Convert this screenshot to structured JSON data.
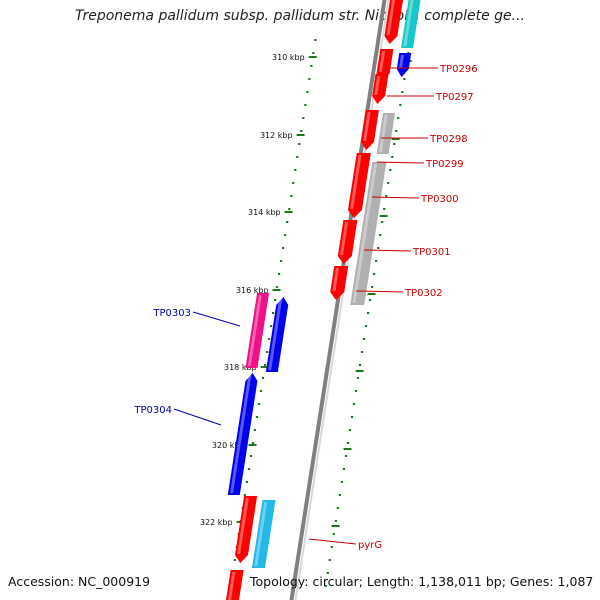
{
  "title": "Treponema pallidum subsp. pallidum str. Nichols, complete ge...",
  "footer": {
    "accession": "Accession: NC_000919",
    "topology": "Topology: circular; Length: 1,138,011 bp; Genes: 1,087"
  },
  "colors": {
    "backbone": "#808080",
    "backbone_light": "#d8d8d8",
    "tick": "#1a7a1a",
    "forward_cds": "#ff0000",
    "reverse_cds": "#0000ee",
    "forward_label": "#cc0000",
    "reverse_label": "#0000aa",
    "cyan_feature": "#22b8e8",
    "teal_feature": "#18c8c8",
    "grey_feature": "#b0b0b0",
    "magenta_feature": "#ee1188"
  },
  "ticks": [
    {
      "label": "310 kbp"
    },
    {
      "label": "312 kbp"
    },
    {
      "label": "314 kbp"
    },
    {
      "label": "316 kbp"
    },
    {
      "label": "318 kbp"
    },
    {
      "label": "320 kbp"
    },
    {
      "label": "322 kbp"
    }
  ],
  "genes": [
    {
      "name": "TP0296",
      "strand": "forward"
    },
    {
      "name": "TP0297",
      "strand": "forward"
    },
    {
      "name": "TP0298",
      "strand": "forward"
    },
    {
      "name": "TP0299",
      "strand": "forward"
    },
    {
      "name": "TP0300",
      "strand": "forward"
    },
    {
      "name": "TP0301",
      "strand": "forward"
    },
    {
      "name": "TP0302",
      "strand": "forward"
    },
    {
      "name": "TP0303",
      "strand": "reverse"
    },
    {
      "name": "TP0304",
      "strand": "reverse"
    },
    {
      "name": "pyrG",
      "strand": "forward"
    }
  ]
}
